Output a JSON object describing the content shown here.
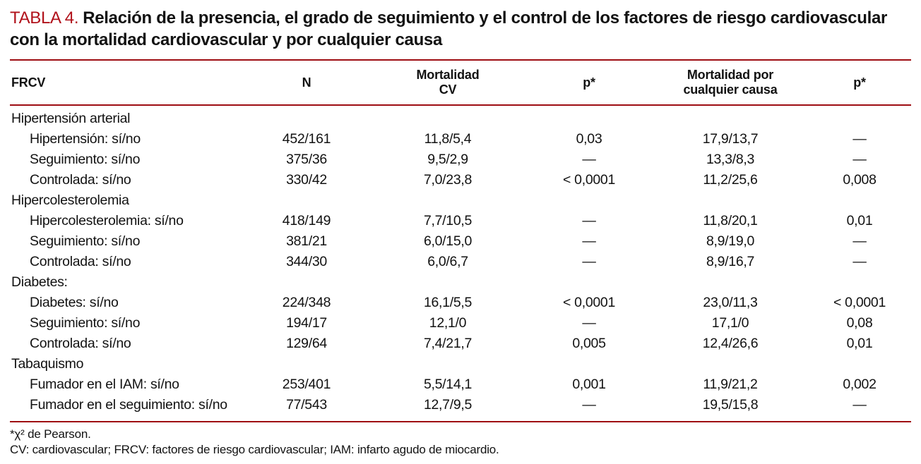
{
  "colors": {
    "accent_red": "#b1121b",
    "rule_red": "#9e0d12",
    "text": "#121212",
    "background": "#ffffff"
  },
  "title": {
    "label": "TABLA 4.",
    "text": "Relación de la presencia, el grado de seguimiento y el control de los factores de riesgo cardiovascular con la mortalidad cardiovascular y por cualquier causa"
  },
  "table": {
    "columns": [
      "FRCV",
      "N",
      "Mortalidad\nCV",
      "p*",
      "Mortalidad por\ncualquier causa",
      "p*"
    ],
    "rows": [
      {
        "type": "section",
        "label": "Hipertensión arterial",
        "n": "",
        "mort_cv": "",
        "p_cv": "",
        "mort_all": "",
        "p_all": ""
      },
      {
        "type": "data",
        "label": "Hipertensión: sí/no",
        "n": "452/161",
        "mort_cv": "11,8/5,4",
        "p_cv": "0,03",
        "mort_all": "17,9/13,7",
        "p_all": "—"
      },
      {
        "type": "data",
        "label": "Seguimiento: sí/no",
        "n": "375/36",
        "mort_cv": "9,5/2,9",
        "p_cv": "—",
        "mort_all": "13,3/8,3",
        "p_all": "—"
      },
      {
        "type": "data",
        "label": "Controlada: sí/no",
        "n": "330/42",
        "mort_cv": "7,0/23,8",
        "p_cv": "< 0,0001",
        "mort_all": "11,2/25,6",
        "p_all": "0,008"
      },
      {
        "type": "section",
        "label": "Hipercolesterolemia",
        "n": "",
        "mort_cv": "",
        "p_cv": "",
        "mort_all": "",
        "p_all": ""
      },
      {
        "type": "data",
        "label": "Hipercolesterolemia: sí/no",
        "n": "418/149",
        "mort_cv": "7,7/10,5",
        "p_cv": "—",
        "mort_all": "11,8/20,1",
        "p_all": "0,01"
      },
      {
        "type": "data",
        "label": "Seguimiento: sí/no",
        "n": "381/21",
        "mort_cv": "6,0/15,0",
        "p_cv": "—",
        "mort_all": "8,9/19,0",
        "p_all": "—"
      },
      {
        "type": "data",
        "label": "Controlada: sí/no",
        "n": "344/30",
        "mort_cv": "6,0/6,7",
        "p_cv": "—",
        "mort_all": "8,9/16,7",
        "p_all": "—"
      },
      {
        "type": "section",
        "label": "Diabetes:",
        "n": "",
        "mort_cv": "",
        "p_cv": "",
        "mort_all": "",
        "p_all": ""
      },
      {
        "type": "data",
        "label": "Diabetes: sí/no",
        "n": "224/348",
        "mort_cv": "16,1/5,5",
        "p_cv": "< 0,0001",
        "mort_all": "23,0/11,3",
        "p_all": "< 0,0001"
      },
      {
        "type": "data",
        "label": "Seguimiento: sí/no",
        "n": "194/17",
        "mort_cv": "12,1/0",
        "p_cv": "—",
        "mort_all": "17,1/0",
        "p_all": "0,08"
      },
      {
        "type": "data",
        "label": "Controlada: sí/no",
        "n": "129/64",
        "mort_cv": "7,4/21,7",
        "p_cv": "0,005",
        "mort_all": "12,4/26,6",
        "p_all": "0,01"
      },
      {
        "type": "section",
        "label": "Tabaquismo",
        "n": "",
        "mort_cv": "",
        "p_cv": "",
        "mort_all": "",
        "p_all": ""
      },
      {
        "type": "data",
        "label": "Fumador en el IAM: sí/no",
        "n": "253/401",
        "mort_cv": "5,5/14,1",
        "p_cv": "0,001",
        "mort_all": "11,9/21,2",
        "p_all": "0,002"
      },
      {
        "type": "data",
        "label": "Fumador en el seguimiento: sí/no",
        "n": "77/543",
        "mort_cv": "12,7/9,5",
        "p_cv": "—",
        "mort_all": "19,5/15,8",
        "p_all": "—"
      }
    ]
  },
  "footnotes": [
    "*χ² de Pearson.",
    "CV: cardiovascular; FRCV: factores de riesgo cardiovascular; IAM: infarto agudo de miocardio."
  ]
}
